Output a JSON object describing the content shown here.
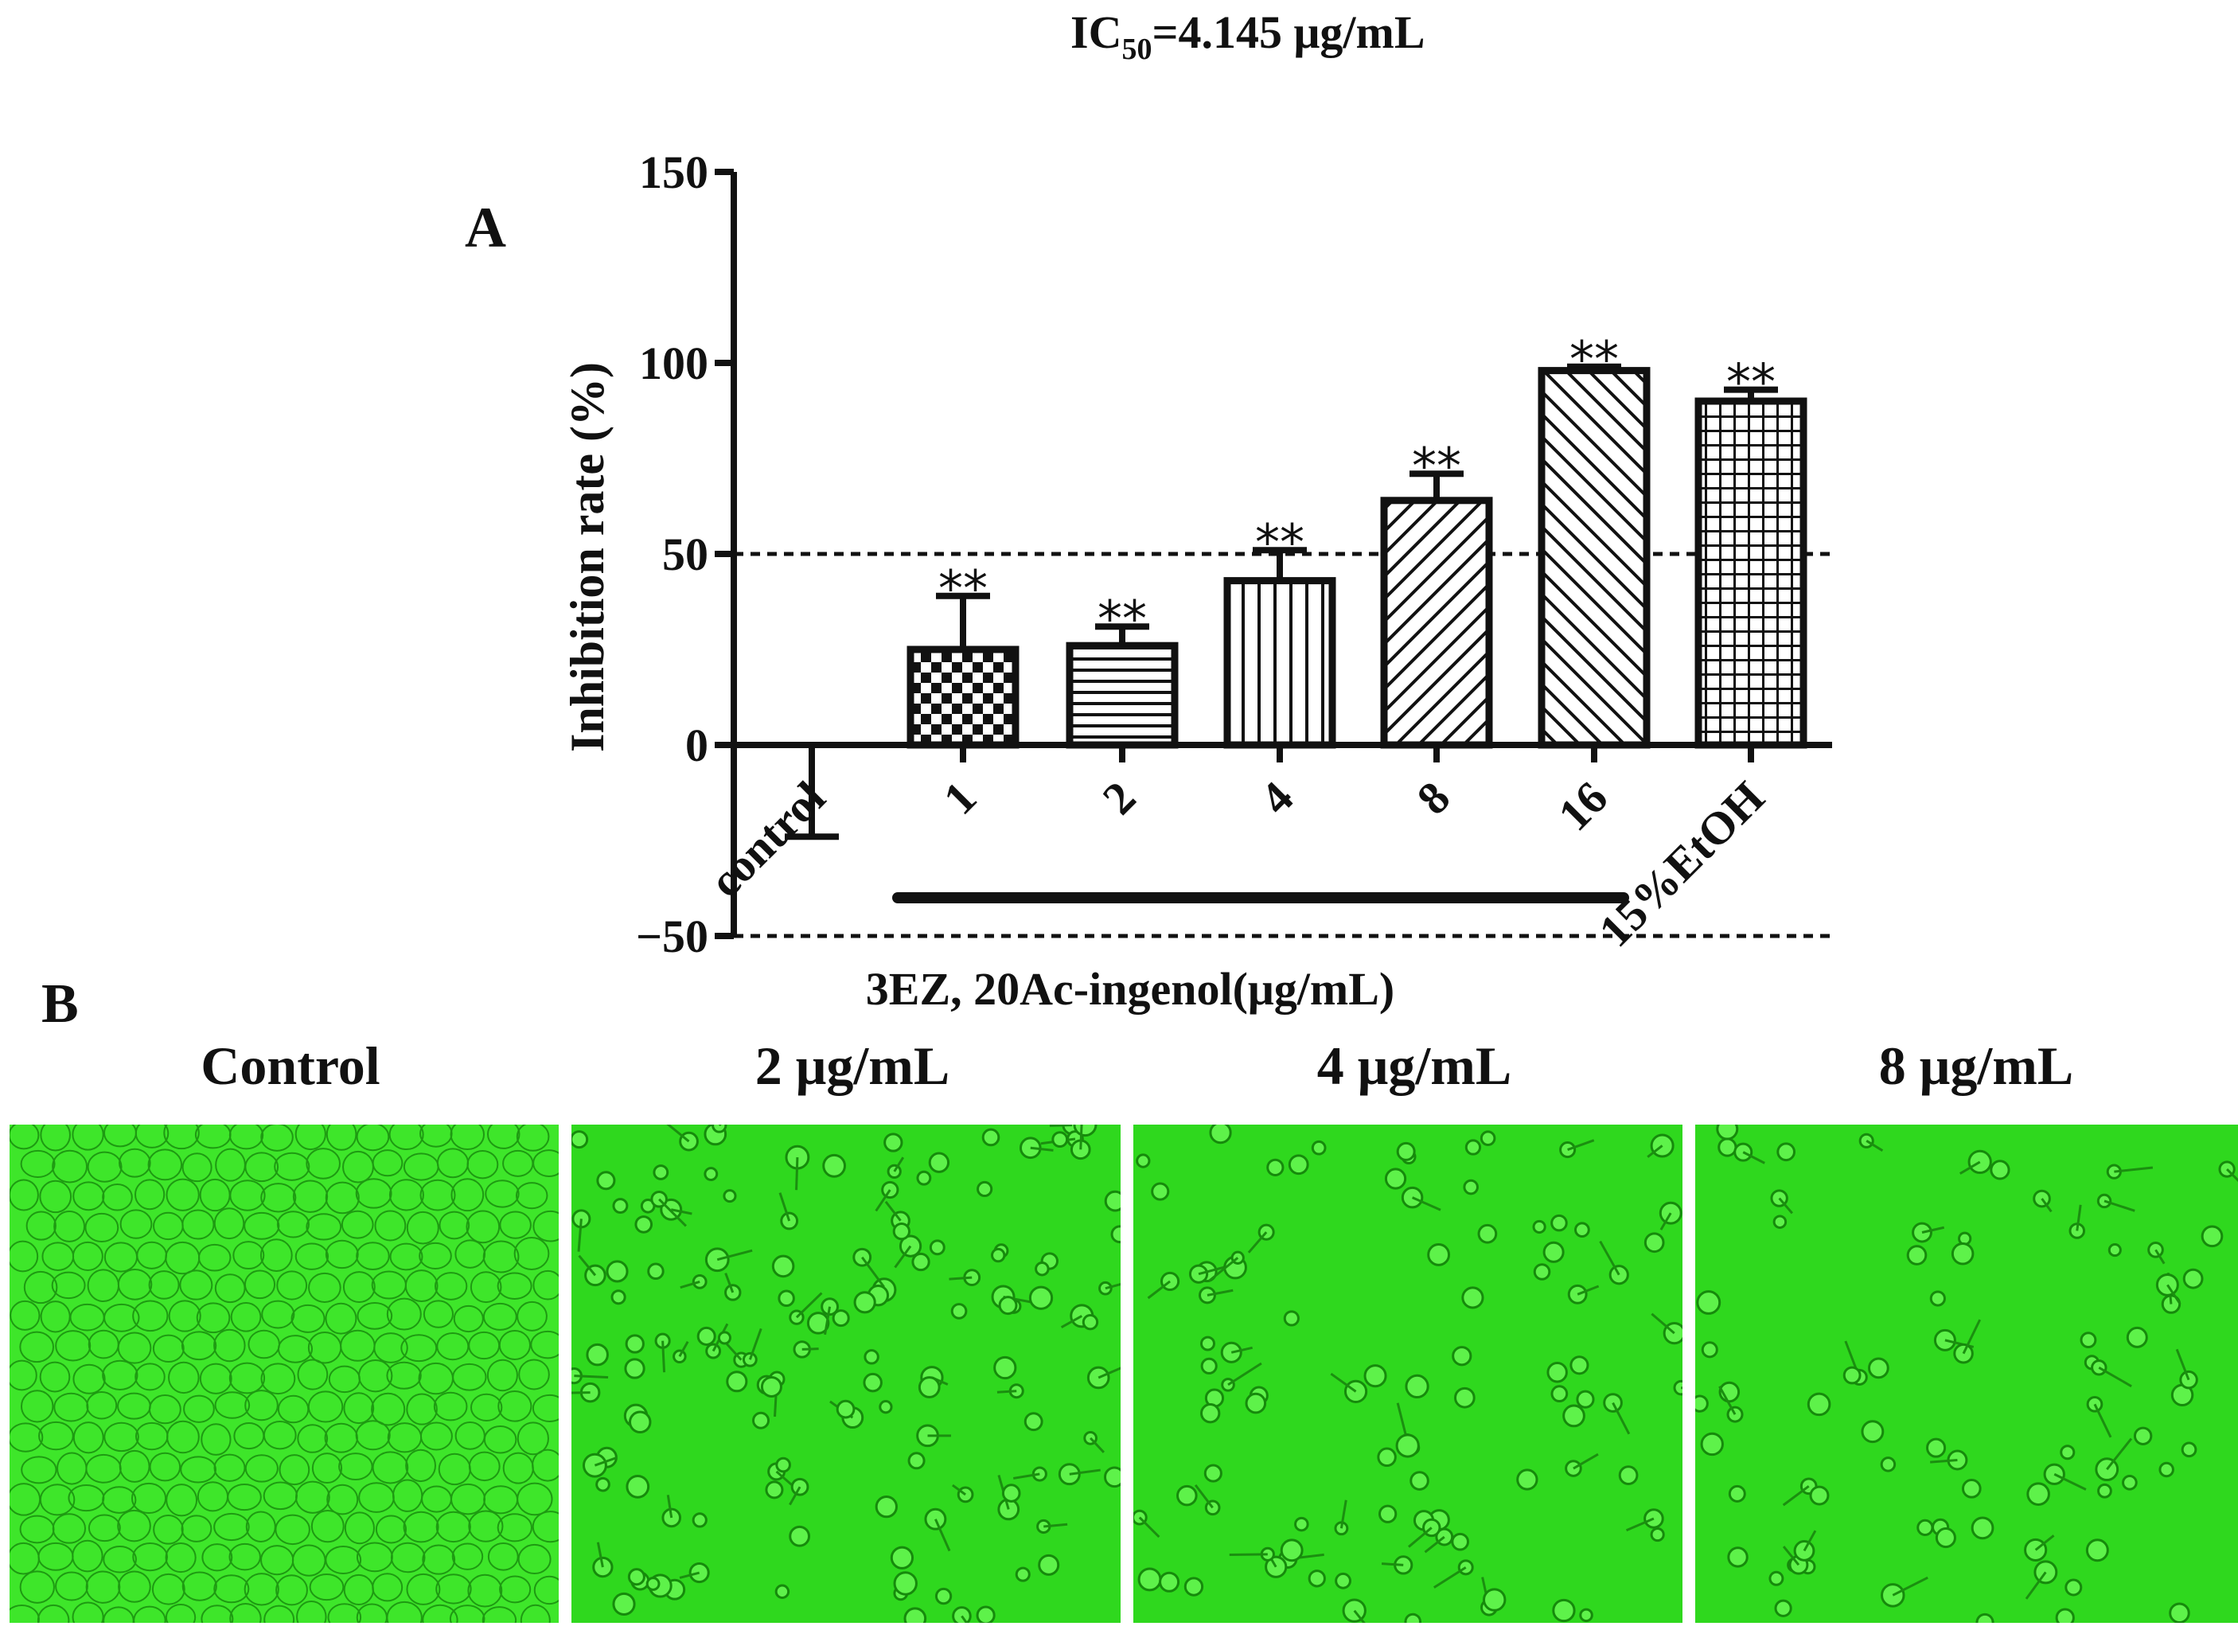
{
  "chart_data": {
    "type": "bar",
    "panel_label": "A",
    "title": {
      "main": "IC",
      "sub": "50",
      "rest": "=4.145 μg/mL"
    },
    "ylabel": "Inhibition rate (%)",
    "xlabel": "3EZ, 20Ac-ingenol(μg/mL)",
    "ylim": [
      -50,
      150
    ],
    "yticks": [
      -50,
      0,
      50,
      100,
      150
    ],
    "ytick_labels": [
      "−50",
      "0",
      "50",
      "100",
      "150"
    ],
    "reference_lines": [
      50,
      -50
    ],
    "categories": [
      "control",
      "1",
      "2",
      "4",
      "8",
      "16",
      "15%EtOH"
    ],
    "values": [
      -12,
      25,
      26,
      43,
      64,
      98,
      90
    ],
    "errors": [
      12,
      14,
      5,
      8,
      7,
      1,
      3
    ],
    "significance": [
      "",
      "**",
      "**",
      "**",
      "**",
      "**",
      "**"
    ],
    "patterns": [
      "none",
      "checker",
      "hlines",
      "vlines",
      "diag-right",
      "diag-left",
      "grid"
    ],
    "bracket_label": "3EZ, 20Ac-ingenol(μg/mL)",
    "grid": false
  },
  "panel_b": {
    "label": "B",
    "panels": [
      {
        "title": "Control"
      },
      {
        "title": "2 μg/mL"
      },
      {
        "title": "4 μg/mL"
      },
      {
        "title": "8 μg/mL"
      }
    ],
    "image_color": "#2ee01c"
  }
}
